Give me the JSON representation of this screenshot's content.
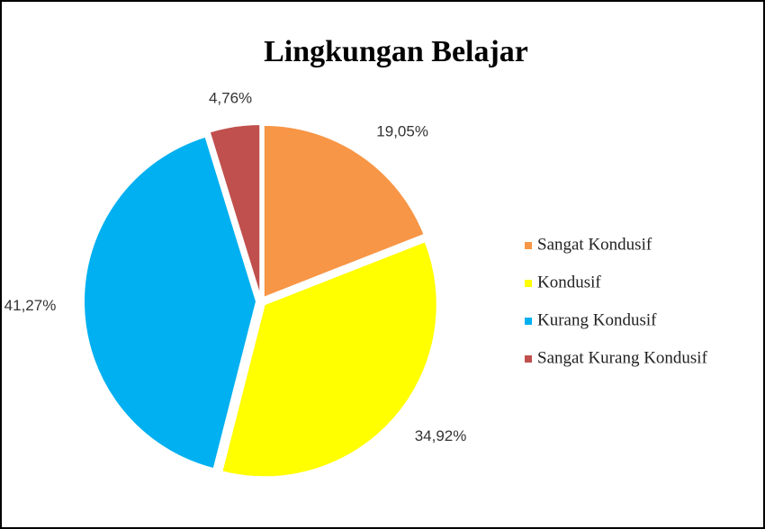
{
  "chart_data": {
    "type": "pie",
    "title": "Lingkungan Belajar",
    "categories": [
      "Sangat Kondusif",
      "Kondusif",
      "Kurang Kondusif",
      "Sangat Kurang Kondusif"
    ],
    "values": [
      19.05,
      34.92,
      41.27,
      4.76
    ],
    "value_labels": [
      "19,05%",
      "34,92%",
      "41,27%",
      "4,76%"
    ],
    "colors": [
      "#f79646",
      "#ffff00",
      "#00b0f0",
      "#c0504d"
    ],
    "legend": "right"
  }
}
